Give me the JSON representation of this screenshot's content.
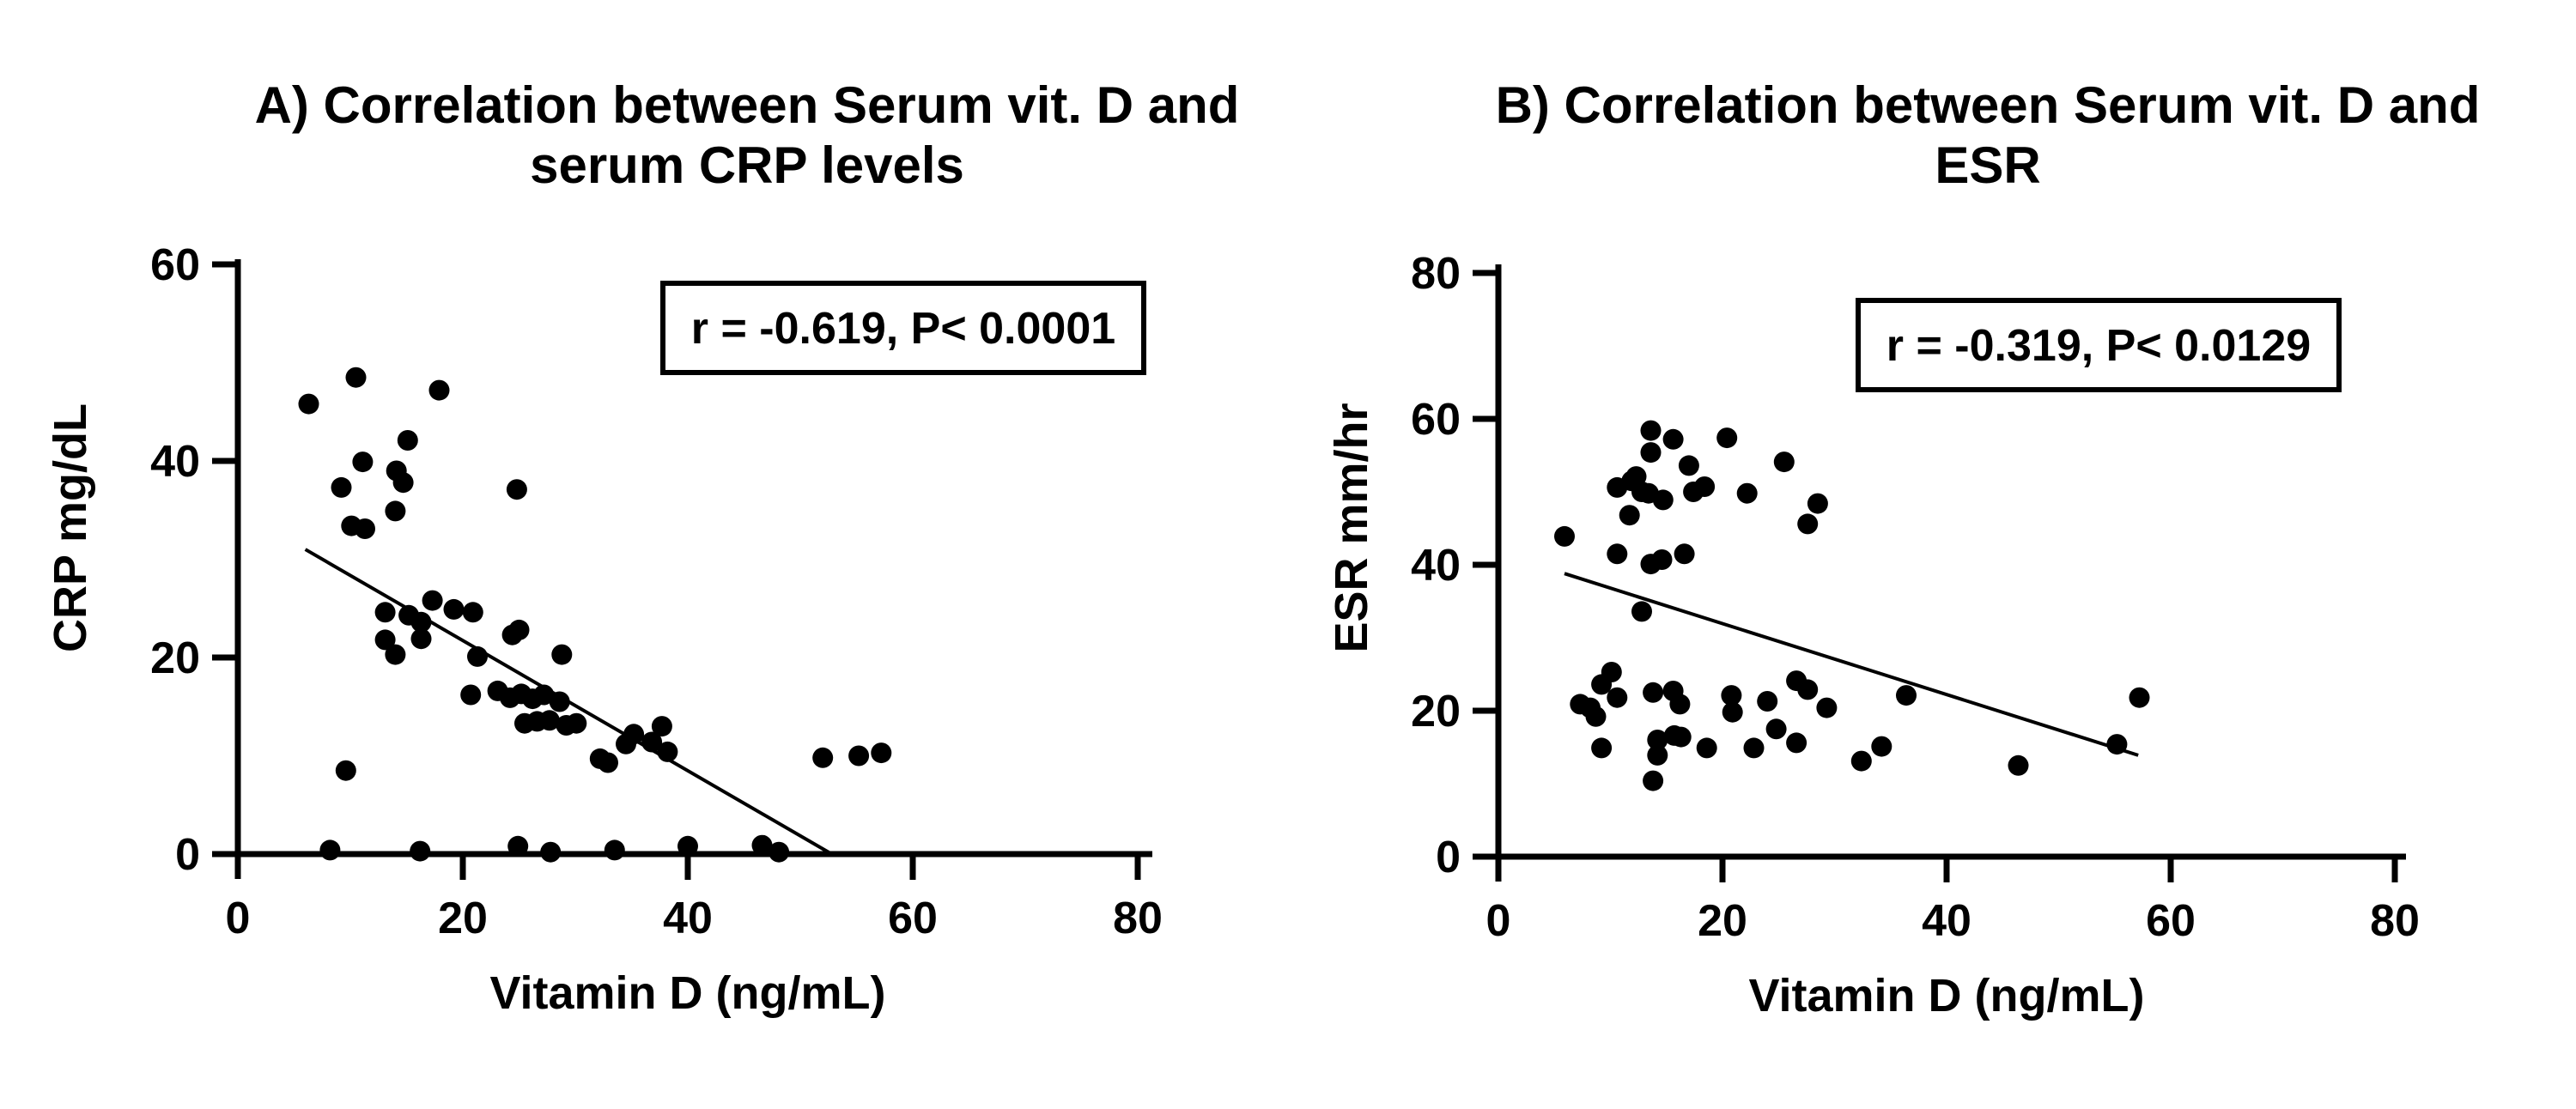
{
  "figure": {
    "background": "#ffffff",
    "ink_color": "#000000"
  },
  "chart_data": [
    {
      "id": "vitd-crp",
      "type": "scatter",
      "title_line1": "A) Correlation between Serum vit. D and",
      "title_line2": "serum CRP levels",
      "annotation": "r = -0.619, P< 0.0001",
      "xlabel": "Vitamin D (ng/mL)",
      "ylabel": "CRP mg/dL",
      "xlim": [
        0,
        80
      ],
      "ylim": [
        0,
        60
      ],
      "xticks": [
        0,
        20,
        40,
        60,
        80
      ],
      "yticks": [
        0,
        20,
        40,
        60
      ],
      "grid": false,
      "marker_color": "#000000",
      "trendline": {
        "x1": 6.0,
        "y1": 31.0,
        "x2": 52.8,
        "y2": 0.0
      },
      "points": [
        [
          6.3,
          45.8
        ],
        [
          10.5,
          48.5
        ],
        [
          17.9,
          47.2
        ],
        [
          15.1,
          42.1
        ],
        [
          11.1,
          39.9
        ],
        [
          14.1,
          39.0
        ],
        [
          14.7,
          37.8
        ],
        [
          9.2,
          37.3
        ],
        [
          24.8,
          37.1
        ],
        [
          14.0,
          34.9
        ],
        [
          10.1,
          33.4
        ],
        [
          11.3,
          33.1
        ],
        [
          13.1,
          24.6
        ],
        [
          15.2,
          24.3
        ],
        [
          17.3,
          25.8
        ],
        [
          16.3,
          23.6
        ],
        [
          19.2,
          24.9
        ],
        [
          20.9,
          24.6
        ],
        [
          13.1,
          21.8
        ],
        [
          14.0,
          20.3
        ],
        [
          16.3,
          21.9
        ],
        [
          21.3,
          20.1
        ],
        [
          24.4,
          22.3
        ],
        [
          25.0,
          22.8
        ],
        [
          28.8,
          20.3
        ],
        [
          20.7,
          16.2
        ],
        [
          23.1,
          16.6
        ],
        [
          24.2,
          15.9
        ],
        [
          25.2,
          16.3
        ],
        [
          26.2,
          15.8
        ],
        [
          27.2,
          16.2
        ],
        [
          28.6,
          15.5
        ],
        [
          25.5,
          13.3
        ],
        [
          26.6,
          13.5
        ],
        [
          27.7,
          13.6
        ],
        [
          29.2,
          13.1
        ],
        [
          30.1,
          13.3
        ],
        [
          32.2,
          9.7
        ],
        [
          32.9,
          9.3
        ],
        [
          34.5,
          11.2
        ],
        [
          35.2,
          12.2
        ],
        [
          36.8,
          11.4
        ],
        [
          37.7,
          13.0
        ],
        [
          38.2,
          10.4
        ],
        [
          9.6,
          8.5
        ],
        [
          52.0,
          9.8
        ],
        [
          55.2,
          10.0
        ],
        [
          57.2,
          10.3
        ],
        [
          8.2,
          0.4
        ],
        [
          16.2,
          0.3
        ],
        [
          24.9,
          0.8
        ],
        [
          27.8,
          0.2
        ],
        [
          33.5,
          0.4
        ],
        [
          40.0,
          0.8
        ],
        [
          46.6,
          0.9
        ],
        [
          48.1,
          0.2
        ]
      ]
    },
    {
      "id": "vitd-esr",
      "type": "scatter",
      "title_line1": "B) Correlation between Serum vit. D and",
      "title_line2": "ESR",
      "annotation": "r = -0.319, P< 0.0129",
      "xlabel": "Vitamin D (ng/mL)",
      "ylabel": "ESR mm/hr",
      "xlim": [
        0,
        80
      ],
      "ylim": [
        0,
        80
      ],
      "xticks": [
        0,
        20,
        40,
        60,
        80
      ],
      "yticks": [
        0,
        20,
        40,
        60,
        80
      ],
      "grid": false,
      "marker_color": "#000000",
      "trendline": {
        "x1": 5.9,
        "y1": 38.8,
        "x2": 57.1,
        "y2": 13.9
      },
      "points": [
        [
          13.6,
          58.4
        ],
        [
          15.6,
          57.2
        ],
        [
          20.4,
          57.4
        ],
        [
          13.6,
          55.4
        ],
        [
          17.0,
          53.6
        ],
        [
          25.5,
          54.1
        ],
        [
          12.3,
          52.1
        ],
        [
          11.9,
          51.5
        ],
        [
          10.6,
          50.6
        ],
        [
          12.8,
          50.0
        ],
        [
          13.4,
          49.8
        ],
        [
          14.7,
          48.9
        ],
        [
          17.4,
          50.0
        ],
        [
          18.4,
          50.7
        ],
        [
          22.2,
          49.8
        ],
        [
          28.5,
          48.4
        ],
        [
          11.7,
          46.8
        ],
        [
          27.6,
          45.6
        ],
        [
          5.9,
          43.9
        ],
        [
          10.6,
          41.5
        ],
        [
          13.6,
          40.1
        ],
        [
          14.6,
          40.7
        ],
        [
          16.6,
          41.5
        ],
        [
          12.8,
          33.6
        ],
        [
          10.1,
          25.3
        ],
        [
          9.2,
          23.6
        ],
        [
          10.6,
          21.8
        ],
        [
          8.2,
          20.4
        ],
        [
          7.3,
          20.9
        ],
        [
          8.7,
          19.2
        ],
        [
          13.8,
          22.5
        ],
        [
          15.6,
          22.7
        ],
        [
          16.2,
          20.9
        ],
        [
          20.8,
          22.1
        ],
        [
          20.9,
          19.8
        ],
        [
          24.0,
          21.3
        ],
        [
          26.6,
          24.1
        ],
        [
          27.6,
          22.9
        ],
        [
          29.3,
          20.4
        ],
        [
          24.8,
          17.5
        ],
        [
          9.2,
          14.9
        ],
        [
          14.2,
          16.0
        ],
        [
          14.2,
          13.9
        ],
        [
          15.7,
          16.6
        ],
        [
          16.3,
          16.4
        ],
        [
          18.6,
          14.9
        ],
        [
          22.8,
          14.9
        ],
        [
          26.6,
          15.6
        ],
        [
          13.8,
          10.4
        ],
        [
          32.4,
          13.1
        ],
        [
          34.2,
          15.1
        ],
        [
          36.4,
          22.1
        ],
        [
          57.2,
          21.8
        ],
        [
          46.4,
          12.5
        ],
        [
          55.2,
          15.4
        ]
      ]
    }
  ]
}
